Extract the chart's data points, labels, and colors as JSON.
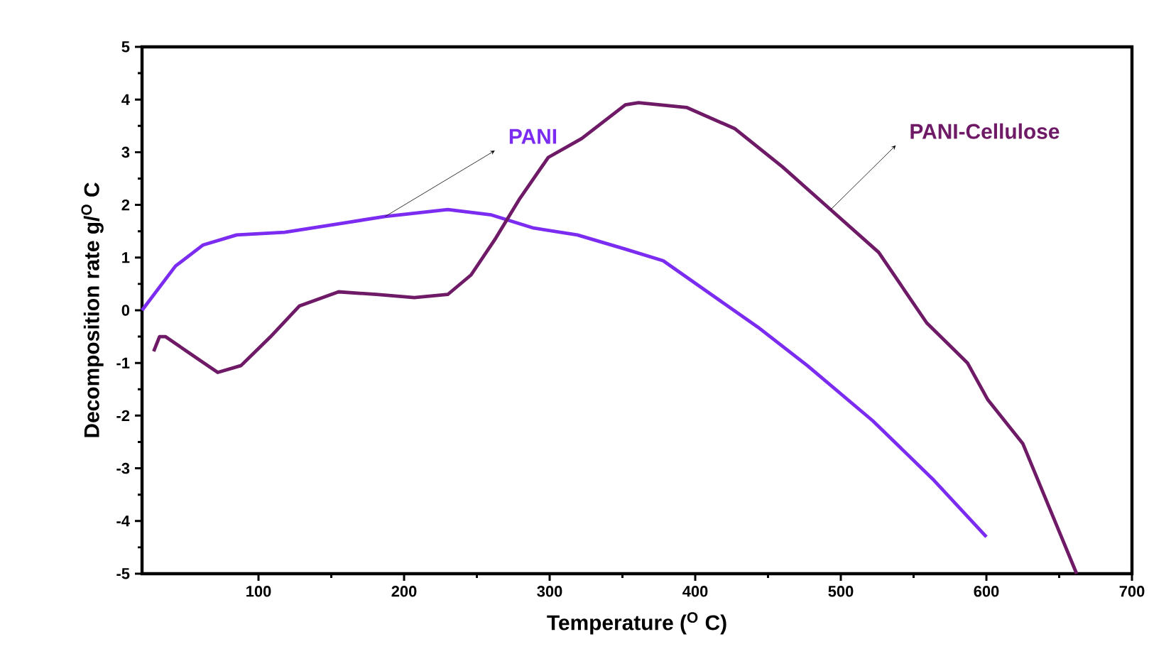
{
  "chart_data": {
    "type": "line",
    "xlabel": "Temperature ($^{O}$ C)",
    "ylabel": "Decomposition rate g/$^{O}$ C",
    "xlim": [
      20,
      700
    ],
    "ylim": [
      -5,
      5
    ],
    "xticks": [
      100,
      200,
      300,
      400,
      500,
      600,
      700
    ],
    "yticks": [
      -5,
      -4,
      -3,
      -2,
      -1,
      0,
      1,
      2,
      3,
      4,
      5
    ],
    "grid": false,
    "legend": false,
    "marker": "none",
    "line_style": "solid",
    "series": [
      {
        "name": "PANI",
        "color": "#7b2cf0",
        "x": [
          20,
          43,
          62,
          85,
          118,
          157,
          187,
          230,
          260,
          289,
          319,
          352,
          378,
          411,
          443,
          477,
          522,
          563,
          600
        ],
        "values": [
          0,
          0.84,
          1.24,
          1.43,
          1.48,
          1.65,
          1.78,
          1.91,
          1.81,
          1.56,
          1.43,
          1.16,
          0.94,
          0.3,
          -0.32,
          -1.05,
          -2.1,
          -3.2,
          -4.3
        ]
      },
      {
        "name": "PANI-Cellulose",
        "color": "#6e1a66",
        "x": [
          28,
          32,
          36,
          55,
          72,
          88,
          108,
          128,
          155,
          181,
          207,
          230,
          246,
          263,
          279,
          299,
          322,
          352,
          361,
          394,
          427,
          460,
          493,
          526,
          559,
          587,
          601,
          625,
          662
        ],
        "values": [
          -0.78,
          -0.5,
          -0.5,
          -0.86,
          -1.18,
          -1.05,
          -0.51,
          0.08,
          0.35,
          0.3,
          0.24,
          0.3,
          0.67,
          1.37,
          2.1,
          2.9,
          3.26,
          3.9,
          3.94,
          3.85,
          3.45,
          2.72,
          1.91,
          1.1,
          -0.24,
          -1.0,
          -1.7,
          -2.53,
          -5
        ]
      }
    ]
  }
}
